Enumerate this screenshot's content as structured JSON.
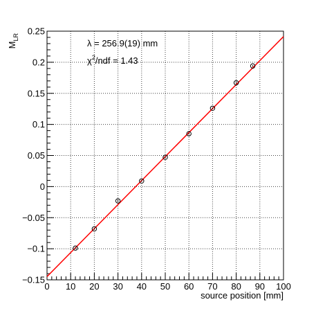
{
  "chart_data": {
    "type": "scatter",
    "title": "",
    "xlabel": "source position [mm]",
    "ylabel_main": "M",
    "ylabel_sub": "LR",
    "xlim": [
      0,
      100
    ],
    "ylim": [
      -0.15,
      0.25
    ],
    "grid": true,
    "x_ticks": [
      0,
      10,
      20,
      30,
      40,
      50,
      60,
      70,
      80,
      90,
      100
    ],
    "x_tick_labels": [
      "0",
      "10",
      "20",
      "30",
      "40",
      "50",
      "60",
      "70",
      "80",
      "90",
      "100"
    ],
    "y_ticks": [
      -0.15,
      -0.1,
      -0.05,
      0,
      0.05,
      0.1,
      0.15,
      0.2,
      0.25
    ],
    "y_tick_labels": [
      "−0.15",
      "−0.1",
      "−0.05",
      "0",
      "0.05",
      "0.1",
      "0.15",
      "0.2",
      "0.25"
    ],
    "series": [
      {
        "x": [
          12,
          20,
          30,
          40,
          50,
          60,
          70,
          80,
          87
        ],
        "y": [
          -0.099,
          -0.068,
          -0.023,
          0.009,
          0.047,
          0.085,
          0.126,
          0.167,
          0.194
        ],
        "marker": "open-circle",
        "color": "#000000"
      }
    ],
    "fit_line": {
      "x": [
        0,
        100
      ],
      "y": [
        -0.1448,
        0.2413
      ],
      "color": "#ff0000"
    },
    "annotations": {
      "lambda_symbol": "λ",
      "lambda_value": " = 256.9(19) mm",
      "chi_prefix": "χ",
      "chi_sup": "2",
      "chi_suffix": "/ndf = 1.43"
    }
  }
}
